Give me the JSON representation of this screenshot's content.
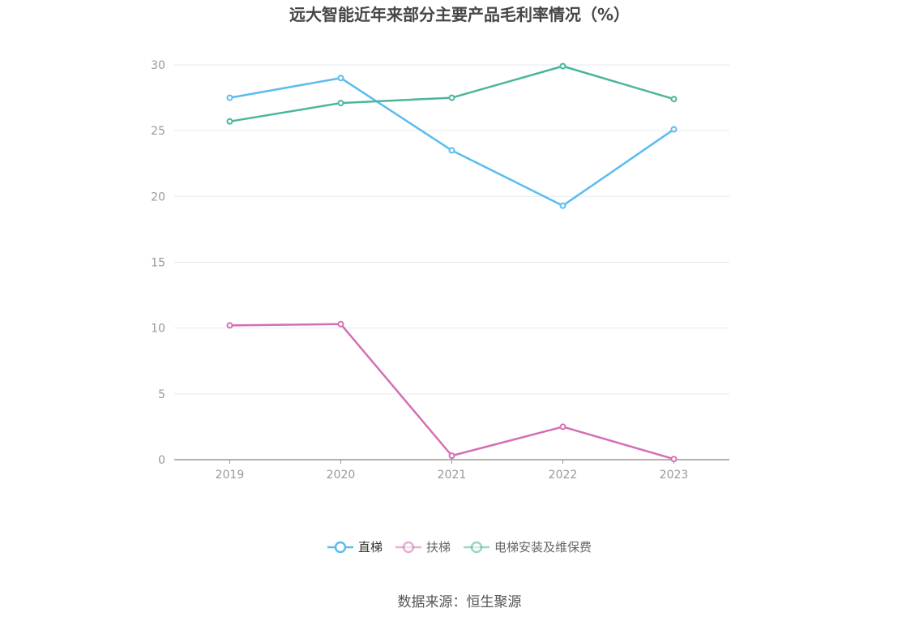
{
  "title": "远大智能近年来部分主要产品毛利率情况（%）",
  "source": "数据来源：恒生聚源",
  "colors": {
    "grid": "#e6e9f2",
    "axis": "#999999",
    "tick_text": "#999999"
  },
  "chart_data": {
    "type": "line",
    "title": "远大智能近年来部分主要产品毛利率情况（%）",
    "x": [
      "2019",
      "2020",
      "2021",
      "2022",
      "2023"
    ],
    "ylim": [
      0,
      30
    ],
    "yticks": [
      0,
      5,
      10,
      15,
      20,
      25,
      30
    ],
    "grid": true,
    "legend_position": "bottom",
    "series": [
      {
        "name": "直梯",
        "color": "#5bbcf0",
        "values": [
          27.5,
          29.0,
          23.5,
          19.3,
          25.1
        ]
      },
      {
        "name": "扶梯",
        "color": "#d46fb4",
        "values": [
          10.2,
          10.3,
          0.3,
          2.5,
          0.05
        ]
      },
      {
        "name": "电梯安装及维保费",
        "color": "#4bb59b",
        "values": [
          25.7,
          27.1,
          27.5,
          29.9,
          27.4
        ]
      }
    ]
  }
}
